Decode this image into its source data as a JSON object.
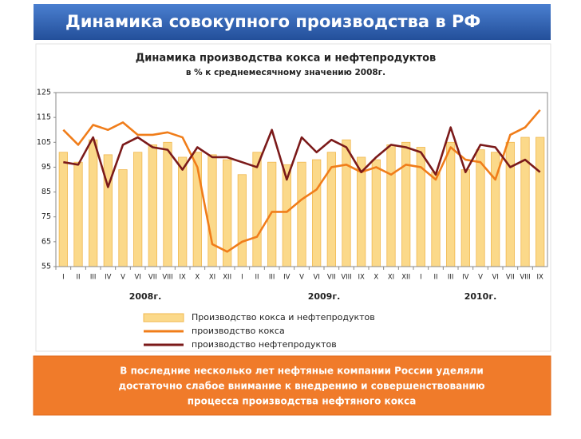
{
  "slide": {
    "title": "Динамика совокупного производства в РФ",
    "note": [
      "В последние несколько лет нефтяные компании России уделяли",
      "достаточно слабое внимание к внедрению и совершенствованию",
      "процесса производства нефтяного кокса"
    ]
  },
  "chart_data": {
    "type": "bar",
    "title": "Динамика производства кокса и нефтепродуктов",
    "subtitle": "в % к среднемесячному значению 2008г.",
    "categories": [
      "I",
      "II",
      "III",
      "IV",
      "V",
      "VI",
      "VII",
      "VIII",
      "IX",
      "X",
      "XI",
      "XII",
      "I",
      "II",
      "III",
      "IV",
      "V",
      "VI",
      "VII",
      "VIII",
      "IX",
      "X",
      "XI",
      "XII",
      "I",
      "II",
      "III",
      "IV",
      "V",
      "VI",
      "VII",
      "VIII",
      "IX"
    ],
    "year_labels": [
      "2008г.",
      "2009г.",
      "2010г."
    ],
    "ylim": [
      55,
      125
    ],
    "yticks": [
      55,
      65,
      75,
      85,
      95,
      105,
      115,
      125
    ],
    "grid": false,
    "series": [
      {
        "name": "Производство кокса и нефтепродуктов",
        "type": "bar",
        "color": "#fbd98a",
        "values": [
          101,
          97,
          106,
          100,
          94,
          101,
          104,
          105,
          99,
          101,
          100,
          98,
          92,
          101,
          97,
          96,
          97,
          98,
          101,
          106,
          99,
          98,
          104,
          105,
          103,
          93,
          105,
          94,
          102,
          101,
          105,
          107,
          107
        ]
      },
      {
        "name": "производство кокса",
        "type": "line",
        "color": "#f07d1a",
        "values": [
          110,
          104,
          112,
          110,
          113,
          108,
          108,
          109,
          107,
          95,
          64,
          61,
          65,
          67,
          77,
          77,
          82,
          86,
          95,
          96,
          93,
          95,
          92,
          96,
          95,
          90,
          103,
          98,
          97,
          90,
          108,
          111,
          118
        ]
      },
      {
        "name": "производство нефтепродуктов",
        "type": "line",
        "color": "#7b1a1a",
        "values": [
          97,
          96,
          107,
          87,
          104,
          107,
          103,
          102,
          94,
          103,
          99,
          99,
          97,
          95,
          110,
          90,
          107,
          101,
          106,
          103,
          93,
          99,
          104,
          103,
          101,
          92,
          111,
          93,
          104,
          103,
          95,
          98,
          93
        ]
      }
    ]
  }
}
